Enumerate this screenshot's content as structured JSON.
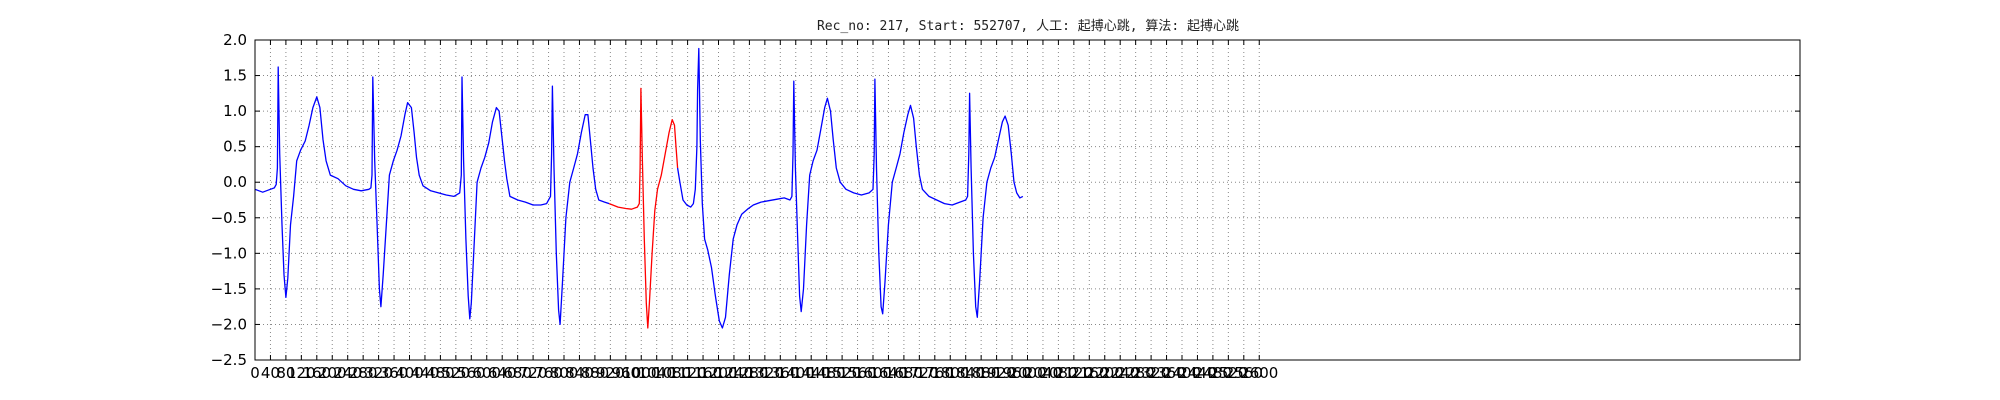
{
  "chart_data": {
    "type": "line",
    "title": "Rec_no: 217, Start: 552707, 人工: 起搏心跳, 算法: 起搏心跳",
    "xlabel": "",
    "ylabel": "",
    "xlim": [
      0,
      4000
    ],
    "ylim": [
      -2.5,
      2.0
    ],
    "grid": true,
    "x_ticks": [
      0,
      40,
      80,
      120,
      160,
      200,
      240,
      280,
      320,
      360,
      400,
      440,
      480,
      520,
      560,
      600,
      640,
      680,
      720,
      760,
      800,
      840,
      880,
      920,
      960,
      1000,
      1040,
      1080,
      1120,
      1160,
      1200,
      1240,
      1280,
      1320,
      1360,
      1400,
      1440,
      1480,
      1520,
      1560,
      1600,
      1640,
      1680,
      1720,
      1760,
      1800,
      1840,
      1880,
      1920,
      1960,
      2000,
      2040,
      2080,
      2120,
      2160,
      2200,
      2240,
      2280,
      2320,
      2360,
      2400,
      2440,
      2480,
      2520,
      2560,
      2600
    ],
    "y_ticks": [
      -2.5,
      -2.0,
      -1.5,
      -1.0,
      -0.5,
      0.0,
      0.5,
      1.0,
      1.5,
      2.0
    ],
    "y_tick_labels": [
      "−2.5",
      "−2.0",
      "−1.5",
      "−1.0",
      "−0.5",
      "0.0",
      "0.5",
      "1.0",
      "1.5",
      "2.0"
    ],
    "series": [
      {
        "color": "#0000ff",
        "points": [
          [
            0,
            -0.1
          ],
          [
            20,
            -0.14
          ],
          [
            40,
            -0.1
          ],
          [
            50,
            -0.08
          ],
          [
            55,
            -0.03
          ],
          [
            58,
            0.2
          ],
          [
            60,
            1.62
          ],
          [
            64,
            0.4
          ],
          [
            70,
            -0.6
          ],
          [
            75,
            -1.3
          ],
          [
            80,
            -1.62
          ],
          [
            85,
            -1.35
          ],
          [
            92,
            -0.6
          ],
          [
            100,
            -0.2
          ],
          [
            108,
            0.3
          ],
          [
            118,
            0.45
          ],
          [
            130,
            0.58
          ],
          [
            140,
            0.8
          ],
          [
            150,
            1.05
          ],
          [
            160,
            1.2
          ],
          [
            168,
            1.05
          ],
          [
            176,
            0.6
          ],
          [
            184,
            0.3
          ],
          [
            195,
            0.1
          ],
          [
            215,
            0.05
          ],
          [
            235,
            -0.05
          ],
          [
            255,
            -0.1
          ],
          [
            275,
            -0.12
          ],
          [
            295,
            -0.1
          ],
          [
            300,
            -0.08
          ],
          [
            303,
            0.1
          ],
          [
            305,
            1.48
          ],
          [
            310,
            0.3
          ],
          [
            316,
            -0.6
          ],
          [
            322,
            -1.5
          ],
          [
            326,
            -1.75
          ],
          [
            332,
            -1.3
          ],
          [
            340,
            -0.6
          ],
          [
            348,
            0.1
          ],
          [
            358,
            0.3
          ],
          [
            368,
            0.45
          ],
          [
            378,
            0.65
          ],
          [
            388,
            0.95
          ],
          [
            395,
            1.12
          ],
          [
            405,
            1.05
          ],
          [
            412,
            0.7
          ],
          [
            418,
            0.35
          ],
          [
            425,
            0.1
          ],
          [
            435,
            -0.05
          ],
          [
            455,
            -0.12
          ],
          [
            475,
            -0.15
          ],
          [
            495,
            -0.18
          ],
          [
            515,
            -0.2
          ],
          [
            530,
            -0.15
          ],
          [
            534,
            0.1
          ],
          [
            536,
            1.48
          ],
          [
            540,
            0.3
          ],
          [
            546,
            -0.8
          ],
          [
            552,
            -1.6
          ],
          [
            556,
            -1.92
          ],
          [
            560,
            -1.7
          ],
          [
            568,
            -0.8
          ],
          [
            575,
            0.0
          ],
          [
            585,
            0.2
          ],
          [
            595,
            0.35
          ],
          [
            605,
            0.55
          ],
          [
            615,
            0.85
          ],
          [
            625,
            1.05
          ],
          [
            632,
            1.0
          ],
          [
            640,
            0.6
          ],
          [
            646,
            0.3
          ],
          [
            652,
            0.05
          ],
          [
            660,
            -0.2
          ],
          [
            680,
            -0.25
          ],
          [
            700,
            -0.28
          ],
          [
            720,
            -0.32
          ],
          [
            740,
            -0.32
          ],
          [
            755,
            -0.3
          ],
          [
            765,
            -0.2
          ],
          [
            768,
            0.4
          ],
          [
            770,
            1.35
          ],
          [
            774,
            0.2
          ],
          [
            780,
            -1.0
          ],
          [
            786,
            -1.8
          ],
          [
            790,
            -2.0
          ],
          [
            796,
            -1.4
          ],
          [
            805,
            -0.5
          ],
          [
            815,
            0.0
          ],
          [
            825,
            0.2
          ],
          [
            835,
            0.4
          ],
          [
            845,
            0.7
          ],
          [
            855,
            0.95
          ],
          [
            862,
            0.95
          ],
          [
            868,
            0.6
          ],
          [
            875,
            0.2
          ],
          [
            882,
            -0.1
          ],
          [
            890,
            -0.25
          ],
          [
            905,
            -0.28
          ],
          [
            917,
            -0.3
          ]
        ]
      },
      {
        "color": "#ff0000",
        "points": [
          [
            917,
            -0.3
          ],
          [
            940,
            -0.35
          ],
          [
            960,
            -0.37
          ],
          [
            975,
            -0.38
          ],
          [
            990,
            -0.35
          ],
          [
            995,
            -0.3
          ],
          [
            997,
            0.2
          ],
          [
            999,
            1.32
          ],
          [
            1003,
            0.3
          ],
          [
            1008,
            -0.8
          ],
          [
            1013,
            -1.7
          ],
          [
            1017,
            -2.05
          ],
          [
            1021,
            -1.7
          ],
          [
            1028,
            -1.0
          ],
          [
            1035,
            -0.4
          ],
          [
            1042,
            -0.1
          ],
          [
            1052,
            0.1
          ],
          [
            1062,
            0.4
          ],
          [
            1072,
            0.7
          ],
          [
            1080,
            0.88
          ],
          [
            1086,
            0.8
          ],
          [
            1090,
            0.5
          ],
          [
            1094,
            0.2
          ]
        ]
      },
      {
        "color": "#0000ff",
        "points": [
          [
            1094,
            0.2
          ],
          [
            1100,
            0.0
          ],
          [
            1108,
            -0.25
          ],
          [
            1118,
            -0.32
          ],
          [
            1128,
            -0.35
          ],
          [
            1135,
            -0.3
          ],
          [
            1140,
            -0.1
          ],
          [
            1144,
            0.5
          ],
          [
            1146,
            1.3
          ],
          [
            1149,
            1.88
          ],
          [
            1153,
            0.6
          ],
          [
            1158,
            -0.3
          ],
          [
            1164,
            -0.8
          ],
          [
            1172,
            -0.95
          ],
          [
            1182,
            -1.2
          ],
          [
            1192,
            -1.6
          ],
          [
            1202,
            -1.95
          ],
          [
            1210,
            -2.05
          ],
          [
            1218,
            -1.9
          ],
          [
            1228,
            -1.3
          ],
          [
            1238,
            -0.8
          ],
          [
            1248,
            -0.6
          ],
          [
            1260,
            -0.45
          ],
          [
            1275,
            -0.38
          ],
          [
            1290,
            -0.32
          ],
          [
            1310,
            -0.28
          ],
          [
            1330,
            -0.26
          ],
          [
            1350,
            -0.24
          ],
          [
            1370,
            -0.22
          ],
          [
            1385,
            -0.25
          ],
          [
            1390,
            -0.2
          ],
          [
            1393,
            0.4
          ],
          [
            1395,
            1.42
          ],
          [
            1399,
            0.2
          ],
          [
            1405,
            -0.8
          ],
          [
            1410,
            -1.6
          ],
          [
            1414,
            -1.82
          ],
          [
            1420,
            -1.5
          ],
          [
            1428,
            -0.6
          ],
          [
            1436,
            0.1
          ],
          [
            1445,
            0.3
          ],
          [
            1455,
            0.45
          ],
          [
            1465,
            0.75
          ],
          [
            1475,
            1.05
          ],
          [
            1482,
            1.18
          ],
          [
            1490,
            1.0
          ],
          [
            1497,
            0.6
          ],
          [
            1505,
            0.2
          ],
          [
            1515,
            0.0
          ],
          [
            1530,
            -0.1
          ],
          [
            1550,
            -0.15
          ],
          [
            1570,
            -0.18
          ],
          [
            1590,
            -0.15
          ],
          [
            1600,
            -0.1
          ],
          [
            1603,
            0.4
          ],
          [
            1605,
            1.45
          ],
          [
            1609,
            0.2
          ],
          [
            1615,
            -1.0
          ],
          [
            1621,
            -1.75
          ],
          [
            1625,
            -1.85
          ],
          [
            1631,
            -1.4
          ],
          [
            1640,
            -0.6
          ],
          [
            1650,
            0.0
          ],
          [
            1660,
            0.2
          ],
          [
            1670,
            0.4
          ],
          [
            1680,
            0.7
          ],
          [
            1690,
            0.95
          ],
          [
            1697,
            1.08
          ],
          [
            1705,
            0.9
          ],
          [
            1712,
            0.5
          ],
          [
            1720,
            0.1
          ],
          [
            1728,
            -0.1
          ],
          [
            1745,
            -0.2
          ],
          [
            1765,
            -0.25
          ],
          [
            1785,
            -0.3
          ],
          [
            1805,
            -0.32
          ],
          [
            1825,
            -0.28
          ],
          [
            1840,
            -0.25
          ],
          [
            1845,
            -0.2
          ],
          [
            1848,
            0.4
          ],
          [
            1850,
            1.25
          ],
          [
            1854,
            0.2
          ],
          [
            1860,
            -1.0
          ],
          [
            1866,
            -1.75
          ],
          [
            1870,
            -1.9
          ],
          [
            1876,
            -1.4
          ],
          [
            1885,
            -0.5
          ],
          [
            1895,
            0.0
          ],
          [
            1905,
            0.2
          ],
          [
            1915,
            0.35
          ],
          [
            1925,
            0.6
          ],
          [
            1935,
            0.85
          ],
          [
            1942,
            0.93
          ],
          [
            1950,
            0.8
          ],
          [
            1958,
            0.4
          ],
          [
            1965,
            0.0
          ],
          [
            1972,
            -0.15
          ],
          [
            1980,
            -0.22
          ],
          [
            1988,
            -0.2
          ]
        ]
      }
    ]
  }
}
